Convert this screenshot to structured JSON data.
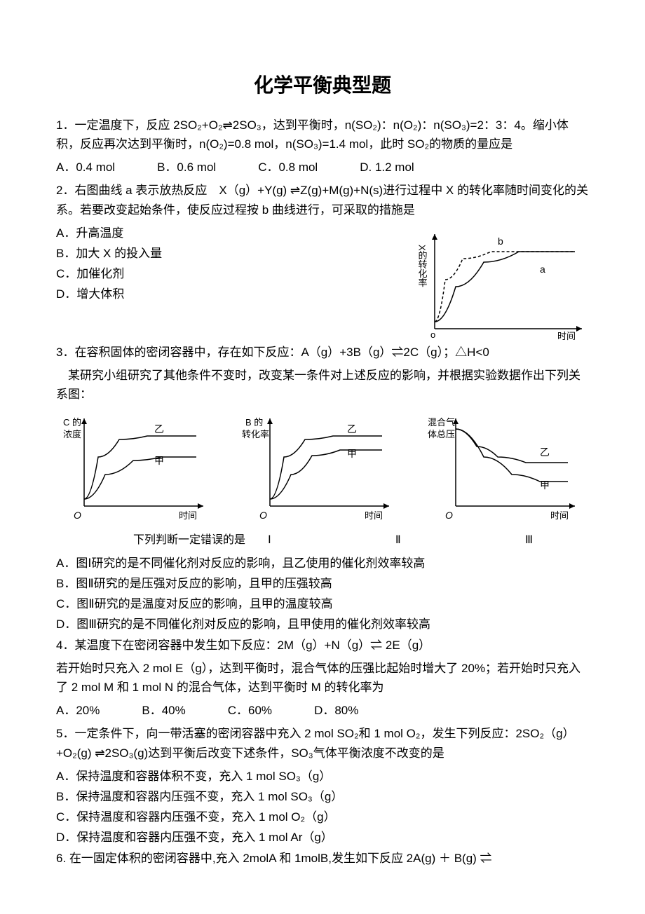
{
  "title": "化学平衡典型题",
  "q1": {
    "text": "1．一定温度下，反应 2SO₂+O₂⇌2SO₃，达到平衡时，n(SO₂)：n(O₂)：n(SO₃)=2：3：4。缩小体积，反应再次达到平衡时，n(O₂)=0.8 mol，n(SO₃)=1.4 mol，此时 SO₂的物质的量应是",
    "optA": "A．0.4 mol",
    "optB": "B．0.6 mol",
    "optC": "C．0.8 mol",
    "optD": "D. 1.2 mol"
  },
  "q2": {
    "text": "2．右图曲线 a 表示放热反应　X（g）+Y(g) ⇌Z(g)+M(g)+N(s)进行过程中 X 的转化率随时间变化的关系。若要改变起始条件，使反应过程按 b 曲线进行，可采取的措施是",
    "optA": "A．升高温度",
    "optB": "B．加大 X 的投入量",
    "optC": "C．加催化剂",
    "optD": "D．增大体积",
    "graph": {
      "type": "line",
      "ylabel": "X的转化率",
      "xlabel": "时间",
      "curves": {
        "a": {
          "dash": "solid",
          "color": "#000000",
          "points": [
            [
              40,
              140
            ],
            [
              70,
              90
            ],
            [
              110,
              55
            ],
            [
              160,
              40
            ],
            [
              240,
              40
            ]
          ]
        },
        "b": {
          "dash": "dashed",
          "color": "#000000",
          "points": [
            [
              40,
              140
            ],
            [
              55,
              80
            ],
            [
              80,
              50
            ],
            [
              120,
              40
            ],
            [
              240,
              40
            ]
          ]
        }
      },
      "label_a_pos": [
        190,
        70
      ],
      "label_b_pos": [
        130,
        30
      ],
      "bg": "#ffffff"
    }
  },
  "q3": {
    "text": "3．在容积固体的密闭容器中，存在如下反应：A（g）+3B（g）⇌2C（g）；△H<0",
    "text2": "　某研究小组研究了其他条件不变时，改变某一条件对上述反应的影响，并根据实验数据作出下列关系图：",
    "graphI": {
      "type": "line",
      "ylabel": "C 的\n浓度",
      "xlabel": "时间",
      "curves": {
        "yi": {
          "color": "#000000",
          "points": [
            [
              40,
              130
            ],
            [
              60,
              70
            ],
            [
              90,
              45
            ],
            [
              130,
              40
            ],
            [
              200,
              40
            ]
          ],
          "label": "乙",
          "label_pos": [
            140,
            35
          ]
        },
        "jia": {
          "color": "#000000",
          "points": [
            [
              40,
              130
            ],
            [
              70,
              95
            ],
            [
              110,
              75
            ],
            [
              150,
              70
            ],
            [
              200,
              70
            ]
          ],
          "label": "甲",
          "label_pos": [
            140,
            80
          ]
        }
      }
    },
    "graphII": {
      "type": "line",
      "ylabel": "B 的\n转化率",
      "xlabel": "时间",
      "curves": {
        "yi": {
          "color": "#000000",
          "points": [
            [
              40,
              130
            ],
            [
              60,
              70
            ],
            [
              90,
              45
            ],
            [
              130,
              40
            ],
            [
              200,
              40
            ]
          ],
          "label": "乙",
          "label_pos": [
            150,
            35
          ]
        },
        "jia": {
          "color": "#000000",
          "points": [
            [
              40,
              130
            ],
            [
              70,
              95
            ],
            [
              100,
              68
            ],
            [
              140,
              60
            ],
            [
              200,
              60
            ]
          ],
          "label": "甲",
          "label_pos": [
            150,
            70
          ]
        }
      }
    },
    "graphIII": {
      "type": "line",
      "ylabel": "混合气\n体总压",
      "xlabel": "时间",
      "curves": {
        "yi": {
          "color": "#000000",
          "points": [
            [
              40,
              30
            ],
            [
              70,
              55
            ],
            [
              100,
              70
            ],
            [
              140,
              78
            ],
            [
              200,
              78
            ]
          ],
          "label": "乙",
          "label_pos": [
            160,
            68
          ]
        },
        "jia": {
          "color": "#000000",
          "points": [
            [
              40,
              30
            ],
            [
              80,
              70
            ],
            [
              120,
              95
            ],
            [
              160,
              105
            ],
            [
              200,
              105
            ]
          ],
          "label": "甲",
          "label_pos": [
            160,
            115
          ]
        }
      }
    },
    "labelI": "Ⅰ",
    "labelII": "Ⅱ",
    "labelIII": "Ⅲ",
    "judge": "下列判断一定错误的是",
    "optA": "A．图Ⅰ研究的是不同催化剂对反应的影响，且乙使用的催化剂效率较高",
    "optB": "B．图Ⅱ研究的是压强对反应的影响，且甲的压强较高",
    "optC": "C．图Ⅱ研究的是温度对反应的影响，且甲的温度较高",
    "optD": "D．图Ⅲ研究的是不同催化剂对反应的影响，且甲使用的催化剂效率较高"
  },
  "q4": {
    "text": "4．某温度下在密闭容器中发生如下反应：2M（g）+N（g）⇌ 2E（g）",
    "text2": "若开始时只充入 2 mol E（g），达到平衡时，混合气体的压强比起始时增大了 20%；若开始时只充入了 2 mol M 和 1 mol N 的混合气体，达到平衡时 M 的转化率为",
    "optA": "A．20%",
    "optB": "B．40%",
    "optC": "C．60%",
    "optD": "D．80%"
  },
  "q5": {
    "text": "5．一定条件下，向一带活塞的密闭容器中充入 2 mol SO₂和 1 mol O₂，发生下列反应：2SO₂（g）+O₂(g) ⇌2SO₃(g)达到平衡后改变下述条件，SO₃气体平衡浓度不改变的是",
    "optA": "A．保持温度和容器体积不变，充入 1 mol SO₃（g）",
    "optB": "B．保持温度和容器内压强不变，充入 1 mol SO₃（g）",
    "optC": "C．保持温度和容器内压强不变，充入 1 mol O₂（g）",
    "optD": "D．保持温度和容器内压强不变，充入 1 mol Ar（g）"
  },
  "q6": {
    "text": "6. 在一固定体积的密闭容器中,充入 2molA 和 1molB,发生如下反应 2A(g) ＋ B(g) ⇌"
  }
}
